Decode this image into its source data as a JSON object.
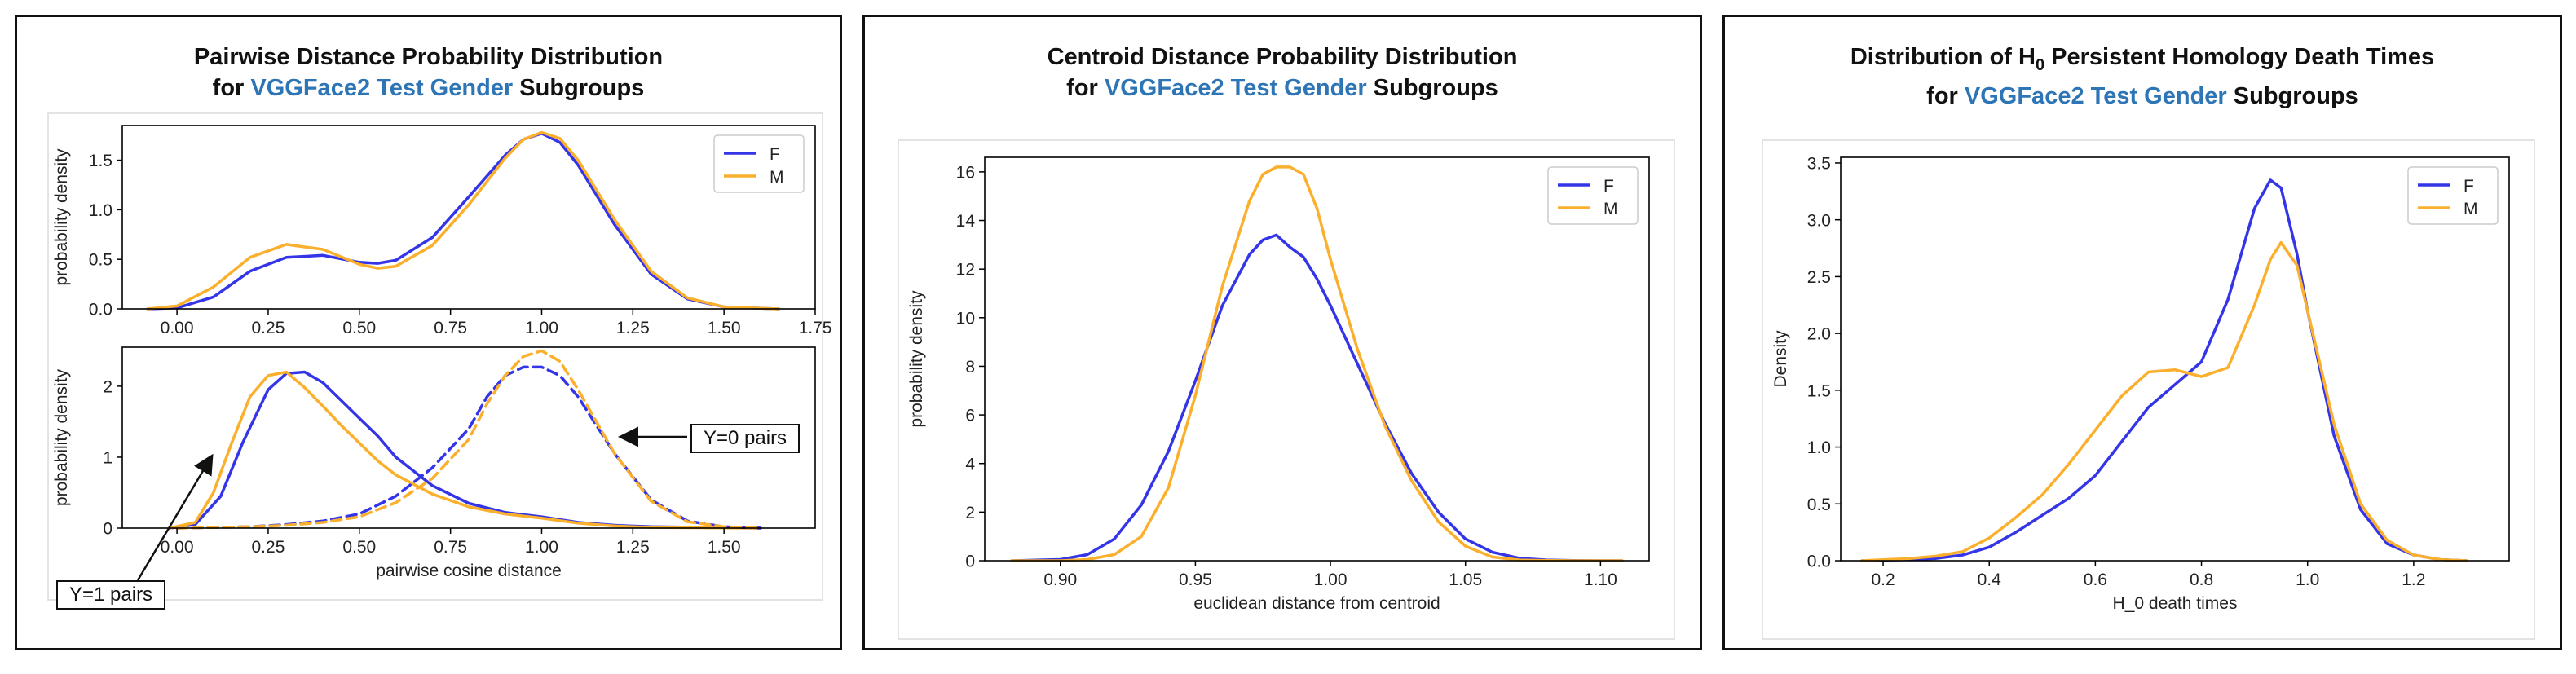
{
  "panels": [
    {
      "title_line1": "Pairwise Distance Probability Distribution",
      "title_pre": "for ",
      "title_highlight": "VGGFace2 Test Gender",
      "title_post": " Subgroups"
    },
    {
      "title_line1": "Centroid Distance Probability Distribution",
      "title_pre": "for ",
      "title_highlight": "VGGFace2 Test Gender",
      "title_post": " Subgroups"
    },
    {
      "title_prefix": "Distribution of H",
      "title_sub": "0",
      "title_suffix": " Persistent Homology Death Times",
      "title_pre": "for ",
      "title_highlight": "VGGFace2 Test Gender",
      "title_post": " Subgroups"
    }
  ],
  "annotations": {
    "y0": "Y=0 pairs",
    "y1": "Y=1 pairs"
  },
  "colors": {
    "F": "#3535e8",
    "M": "#fbb02d",
    "highlight": "#2e75b6"
  },
  "chart_data": [
    {
      "id": "pair_top",
      "type": "line",
      "title": "",
      "xlabel": "",
      "ylabel": "probability density",
      "xlim": [
        -0.15,
        1.75
      ],
      "ylim": [
        0,
        1.85
      ],
      "xticks": [
        0.0,
        0.25,
        0.5,
        0.75,
        1.0,
        1.25,
        1.5,
        1.75
      ],
      "xtick_labels": [
        "0.00",
        "0.25",
        "0.50",
        "0.75",
        "1.00",
        "1.25",
        "1.50",
        "1.75"
      ],
      "yticks": [
        0,
        0.5,
        1.0,
        1.5
      ],
      "ytick_labels": [
        "0.0",
        "0.5",
        "1.0",
        "1.5"
      ],
      "legend": [
        "F",
        "M"
      ],
      "legend_loc": "top-right",
      "series": [
        {
          "name": "F",
          "style": "solid",
          "x": [
            -0.08,
            0,
            0.1,
            0.2,
            0.3,
            0.4,
            0.5,
            0.55,
            0.6,
            0.7,
            0.8,
            0.9,
            0.95,
            1.0,
            1.05,
            1.1,
            1.2,
            1.3,
            1.4,
            1.5,
            1.65
          ],
          "y": [
            0,
            0.01,
            0.12,
            0.38,
            0.52,
            0.54,
            0.47,
            0.46,
            0.49,
            0.72,
            1.13,
            1.55,
            1.71,
            1.77,
            1.68,
            1.45,
            0.85,
            0.35,
            0.1,
            0.02,
            0
          ]
        },
        {
          "name": "M",
          "style": "solid",
          "x": [
            -0.08,
            0,
            0.1,
            0.2,
            0.3,
            0.4,
            0.5,
            0.55,
            0.6,
            0.7,
            0.8,
            0.9,
            0.95,
            1.0,
            1.05,
            1.1,
            1.2,
            1.3,
            1.4,
            1.5,
            1.65
          ],
          "y": [
            0,
            0.03,
            0.22,
            0.52,
            0.65,
            0.6,
            0.45,
            0.41,
            0.43,
            0.64,
            1.05,
            1.52,
            1.71,
            1.78,
            1.72,
            1.5,
            0.9,
            0.38,
            0.11,
            0.02,
            0
          ]
        }
      ]
    },
    {
      "id": "pair_bottom",
      "type": "line",
      "title": "",
      "xlabel": "pairwise cosine distance",
      "ylabel": "probability density",
      "xlim": [
        -0.15,
        1.75
      ],
      "ylim": [
        0,
        2.55
      ],
      "xticks": [
        0.0,
        0.25,
        0.5,
        0.75,
        1.0,
        1.25,
        1.5
      ],
      "xtick_labels": [
        "0.00",
        "0.25",
        "0.50",
        "0.75",
        "1.00",
        "1.25",
        "1.50"
      ],
      "yticks": [
        0,
        1,
        2
      ],
      "ytick_labels": [
        "0",
        "1",
        "2"
      ],
      "series": [
        {
          "name": "F",
          "group": "Y=1",
          "style": "solid",
          "x": [
            -0.02,
            0.05,
            0.12,
            0.18,
            0.25,
            0.3,
            0.35,
            0.4,
            0.45,
            0.5,
            0.55,
            0.6,
            0.7,
            0.8,
            0.9,
            1.0,
            1.1,
            1.2,
            1.3,
            1.45,
            1.6
          ],
          "y": [
            0,
            0.05,
            0.45,
            1.2,
            1.95,
            2.18,
            2.2,
            2.05,
            1.8,
            1.55,
            1.3,
            1.0,
            0.6,
            0.35,
            0.22,
            0.16,
            0.08,
            0.04,
            0.02,
            0.01,
            0
          ]
        },
        {
          "name": "M",
          "group": "Y=1",
          "style": "solid",
          "x": [
            -0.02,
            0.05,
            0.1,
            0.15,
            0.2,
            0.25,
            0.3,
            0.35,
            0.4,
            0.45,
            0.5,
            0.55,
            0.6,
            0.7,
            0.8,
            0.9,
            1.0,
            1.1,
            1.2,
            1.3,
            1.45,
            1.6
          ],
          "y": [
            0,
            0.08,
            0.5,
            1.2,
            1.85,
            2.15,
            2.2,
            1.98,
            1.72,
            1.45,
            1.2,
            0.95,
            0.75,
            0.48,
            0.3,
            0.2,
            0.14,
            0.07,
            0.03,
            0.01,
            0.005,
            0
          ]
        },
        {
          "name": "F",
          "group": "Y=0",
          "style": "dashed",
          "x": [
            0,
            0.2,
            0.3,
            0.4,
            0.5,
            0.6,
            0.7,
            0.8,
            0.85,
            0.9,
            0.95,
            1.0,
            1.05,
            1.1,
            1.2,
            1.3,
            1.4,
            1.5,
            1.6
          ],
          "y": [
            0,
            0.02,
            0.05,
            0.1,
            0.2,
            0.45,
            0.85,
            1.4,
            1.85,
            2.15,
            2.27,
            2.27,
            2.15,
            1.85,
            1.05,
            0.4,
            0.1,
            0.02,
            0
          ]
        },
        {
          "name": "M",
          "group": "Y=0",
          "style": "dashed",
          "x": [
            0,
            0.2,
            0.3,
            0.4,
            0.5,
            0.6,
            0.7,
            0.8,
            0.85,
            0.9,
            0.95,
            1.0,
            1.05,
            1.1,
            1.2,
            1.3,
            1.4,
            1.5,
            1.6
          ],
          "y": [
            0,
            0.02,
            0.04,
            0.08,
            0.16,
            0.36,
            0.7,
            1.25,
            1.75,
            2.15,
            2.42,
            2.5,
            2.35,
            1.95,
            1.05,
            0.38,
            0.09,
            0.02,
            0
          ]
        }
      ]
    },
    {
      "id": "centroid",
      "type": "line",
      "title": "",
      "xlabel": "euclidean distance from centroid",
      "ylabel": "probability density",
      "xlim": [
        0.872,
        1.118
      ],
      "ylim": [
        0,
        16.6
      ],
      "xticks": [
        0.9,
        0.95,
        1.0,
        1.05,
        1.1
      ],
      "xtick_labels": [
        "0.90",
        "0.95",
        "1.00",
        "1.05",
        "1.10"
      ],
      "yticks": [
        0,
        2,
        4,
        6,
        8,
        10,
        12,
        14,
        16
      ],
      "ytick_labels": [
        "0",
        "2",
        "4",
        "6",
        "8",
        "10",
        "12",
        "14",
        "16"
      ],
      "legend": [
        "F",
        "M"
      ],
      "legend_loc": "top-right",
      "series": [
        {
          "name": "F",
          "style": "solid",
          "x": [
            0.882,
            0.9,
            0.91,
            0.92,
            0.93,
            0.94,
            0.95,
            0.96,
            0.97,
            0.975,
            0.98,
            0.985,
            0.99,
            0.995,
            1.0,
            1.01,
            1.02,
            1.03,
            1.04,
            1.05,
            1.06,
            1.07,
            1.08,
            1.09,
            1.1,
            1.108
          ],
          "y": [
            0,
            0.05,
            0.25,
            0.9,
            2.3,
            4.5,
            7.4,
            10.5,
            12.6,
            13.2,
            13.4,
            12.9,
            12.5,
            11.6,
            10.5,
            8.1,
            5.7,
            3.6,
            2.0,
            0.9,
            0.35,
            0.1,
            0.03,
            0.01,
            0,
            0
          ]
        },
        {
          "name": "M",
          "style": "solid",
          "x": [
            0.882,
            0.9,
            0.91,
            0.92,
            0.93,
            0.94,
            0.95,
            0.96,
            0.97,
            0.975,
            0.98,
            0.985,
            0.99,
            0.995,
            1.0,
            1.01,
            1.02,
            1.03,
            1.04,
            1.05,
            1.06,
            1.07,
            1.08,
            1.09,
            1.1,
            1.108
          ],
          "y": [
            0,
            0,
            0.05,
            0.25,
            1.0,
            3.0,
            6.8,
            11.3,
            14.8,
            15.9,
            16.2,
            16.2,
            15.9,
            14.5,
            12.4,
            8.7,
            5.6,
            3.3,
            1.6,
            0.6,
            0.15,
            0.03,
            0.01,
            0,
            0,
            0
          ]
        }
      ]
    },
    {
      "id": "h0",
      "type": "line",
      "title": "",
      "xlabel": "H_0 death times",
      "ylabel": "Density",
      "xlim": [
        0.12,
        1.38
      ],
      "ylim": [
        0,
        3.55
      ],
      "xticks": [
        0.2,
        0.4,
        0.6,
        0.8,
        1.0,
        1.2
      ],
      "xtick_labels": [
        "0.2",
        "0.4",
        "0.6",
        "0.8",
        "1.0",
        "1.2"
      ],
      "yticks": [
        0,
        0.5,
        1.0,
        1.5,
        2.0,
        2.5,
        3.0,
        3.5
      ],
      "ytick_labels": [
        "0.0",
        "0.5",
        "1.0",
        "1.5",
        "2.0",
        "2.5",
        "3.0",
        "3.5"
      ],
      "legend": [
        "F",
        "M"
      ],
      "legend_loc": "top-right",
      "series": [
        {
          "name": "F",
          "style": "solid",
          "x": [
            0.16,
            0.25,
            0.3,
            0.35,
            0.4,
            0.45,
            0.5,
            0.55,
            0.6,
            0.65,
            0.7,
            0.75,
            0.8,
            0.85,
            0.9,
            0.93,
            0.95,
            0.98,
            1.0,
            1.05,
            1.1,
            1.15,
            1.2,
            1.25,
            1.3
          ],
          "y": [
            0,
            0.01,
            0.02,
            0.05,
            0.12,
            0.25,
            0.4,
            0.55,
            0.75,
            1.05,
            1.35,
            1.55,
            1.75,
            2.3,
            3.1,
            3.35,
            3.28,
            2.7,
            2.2,
            1.1,
            0.45,
            0.15,
            0.05,
            0.01,
            0
          ]
        },
        {
          "name": "M",
          "style": "solid",
          "x": [
            0.16,
            0.25,
            0.3,
            0.35,
            0.4,
            0.45,
            0.5,
            0.55,
            0.6,
            0.65,
            0.7,
            0.75,
            0.8,
            0.85,
            0.9,
            0.93,
            0.95,
            0.98,
            1.0,
            1.05,
            1.1,
            1.15,
            1.2,
            1.25,
            1.3
          ],
          "y": [
            0,
            0.02,
            0.04,
            0.08,
            0.2,
            0.38,
            0.58,
            0.85,
            1.15,
            1.45,
            1.66,
            1.68,
            1.62,
            1.7,
            2.25,
            2.65,
            2.8,
            2.6,
            2.2,
            1.2,
            0.5,
            0.18,
            0.05,
            0.01,
            0
          ]
        }
      ]
    }
  ]
}
